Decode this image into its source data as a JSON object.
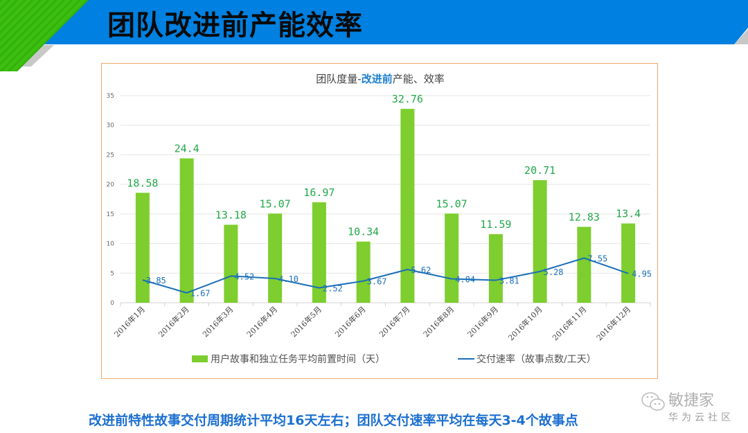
{
  "header": {
    "title": "团队改进前产能效率",
    "colors": {
      "banner": "#0080e0",
      "stripe_green": "#3cc010",
      "shadow": "#c8c8c8"
    }
  },
  "footer": {
    "summary": "改进前特性故事交付周期统计平均16天左右；团队交付速率平均在每天3-4个故事点"
  },
  "watermark": {
    "icon": "wechat-icon",
    "brand": "敏捷家",
    "sub": "华为云社区"
  },
  "chart_data": {
    "type": "bar",
    "title_prefix": "团队度量-",
    "title_highlight": "改进前",
    "title_suffix": "产能、效率",
    "categories": [
      "2016年1月",
      "2016年2月",
      "2016年3月",
      "2016年4月",
      "2016年5月",
      "2016年6月",
      "2016年7月",
      "2016年8月",
      "2016年9月",
      "2016年10月",
      "2016年11月",
      "2016年12月"
    ],
    "series": [
      {
        "name": "用户故事和独立任务平均前置时间（天）",
        "type": "bar",
        "color": "#7dce2e",
        "label_color": "#22a84a",
        "values": [
          18.58,
          24.4,
          13.18,
          15.07,
          16.97,
          10.34,
          32.76,
          15.07,
          11.59,
          20.71,
          12.83,
          13.4
        ],
        "labels": [
          "18.58",
          "24.4",
          "13.18",
          "15.07",
          "16.97",
          "10.34",
          "32.76",
          "15.07",
          "11.59",
          "20.71",
          "12.83",
          "13.4"
        ]
      },
      {
        "name": "交付速率（故事点数/工天）",
        "type": "line",
        "color": "#1a6fb8",
        "label_color": "#1a6fb8",
        "values": [
          3.85,
          1.67,
          4.52,
          4.1,
          2.52,
          3.67,
          5.62,
          4.04,
          3.81,
          5.28,
          7.55,
          4.95
        ],
        "labels": [
          "3.85",
          "1.67",
          "4.52",
          "4.10",
          "2.52",
          "3.67",
          "5.62",
          "4.04",
          "3.81",
          "5.28",
          "7.55",
          "4.95"
        ]
      }
    ],
    "yticks": [
      "0",
      "5",
      "10",
      "15",
      "20",
      "25",
      "30",
      "35"
    ],
    "ylim": [
      0,
      35
    ],
    "grid": true,
    "legend_position": "bottom"
  }
}
